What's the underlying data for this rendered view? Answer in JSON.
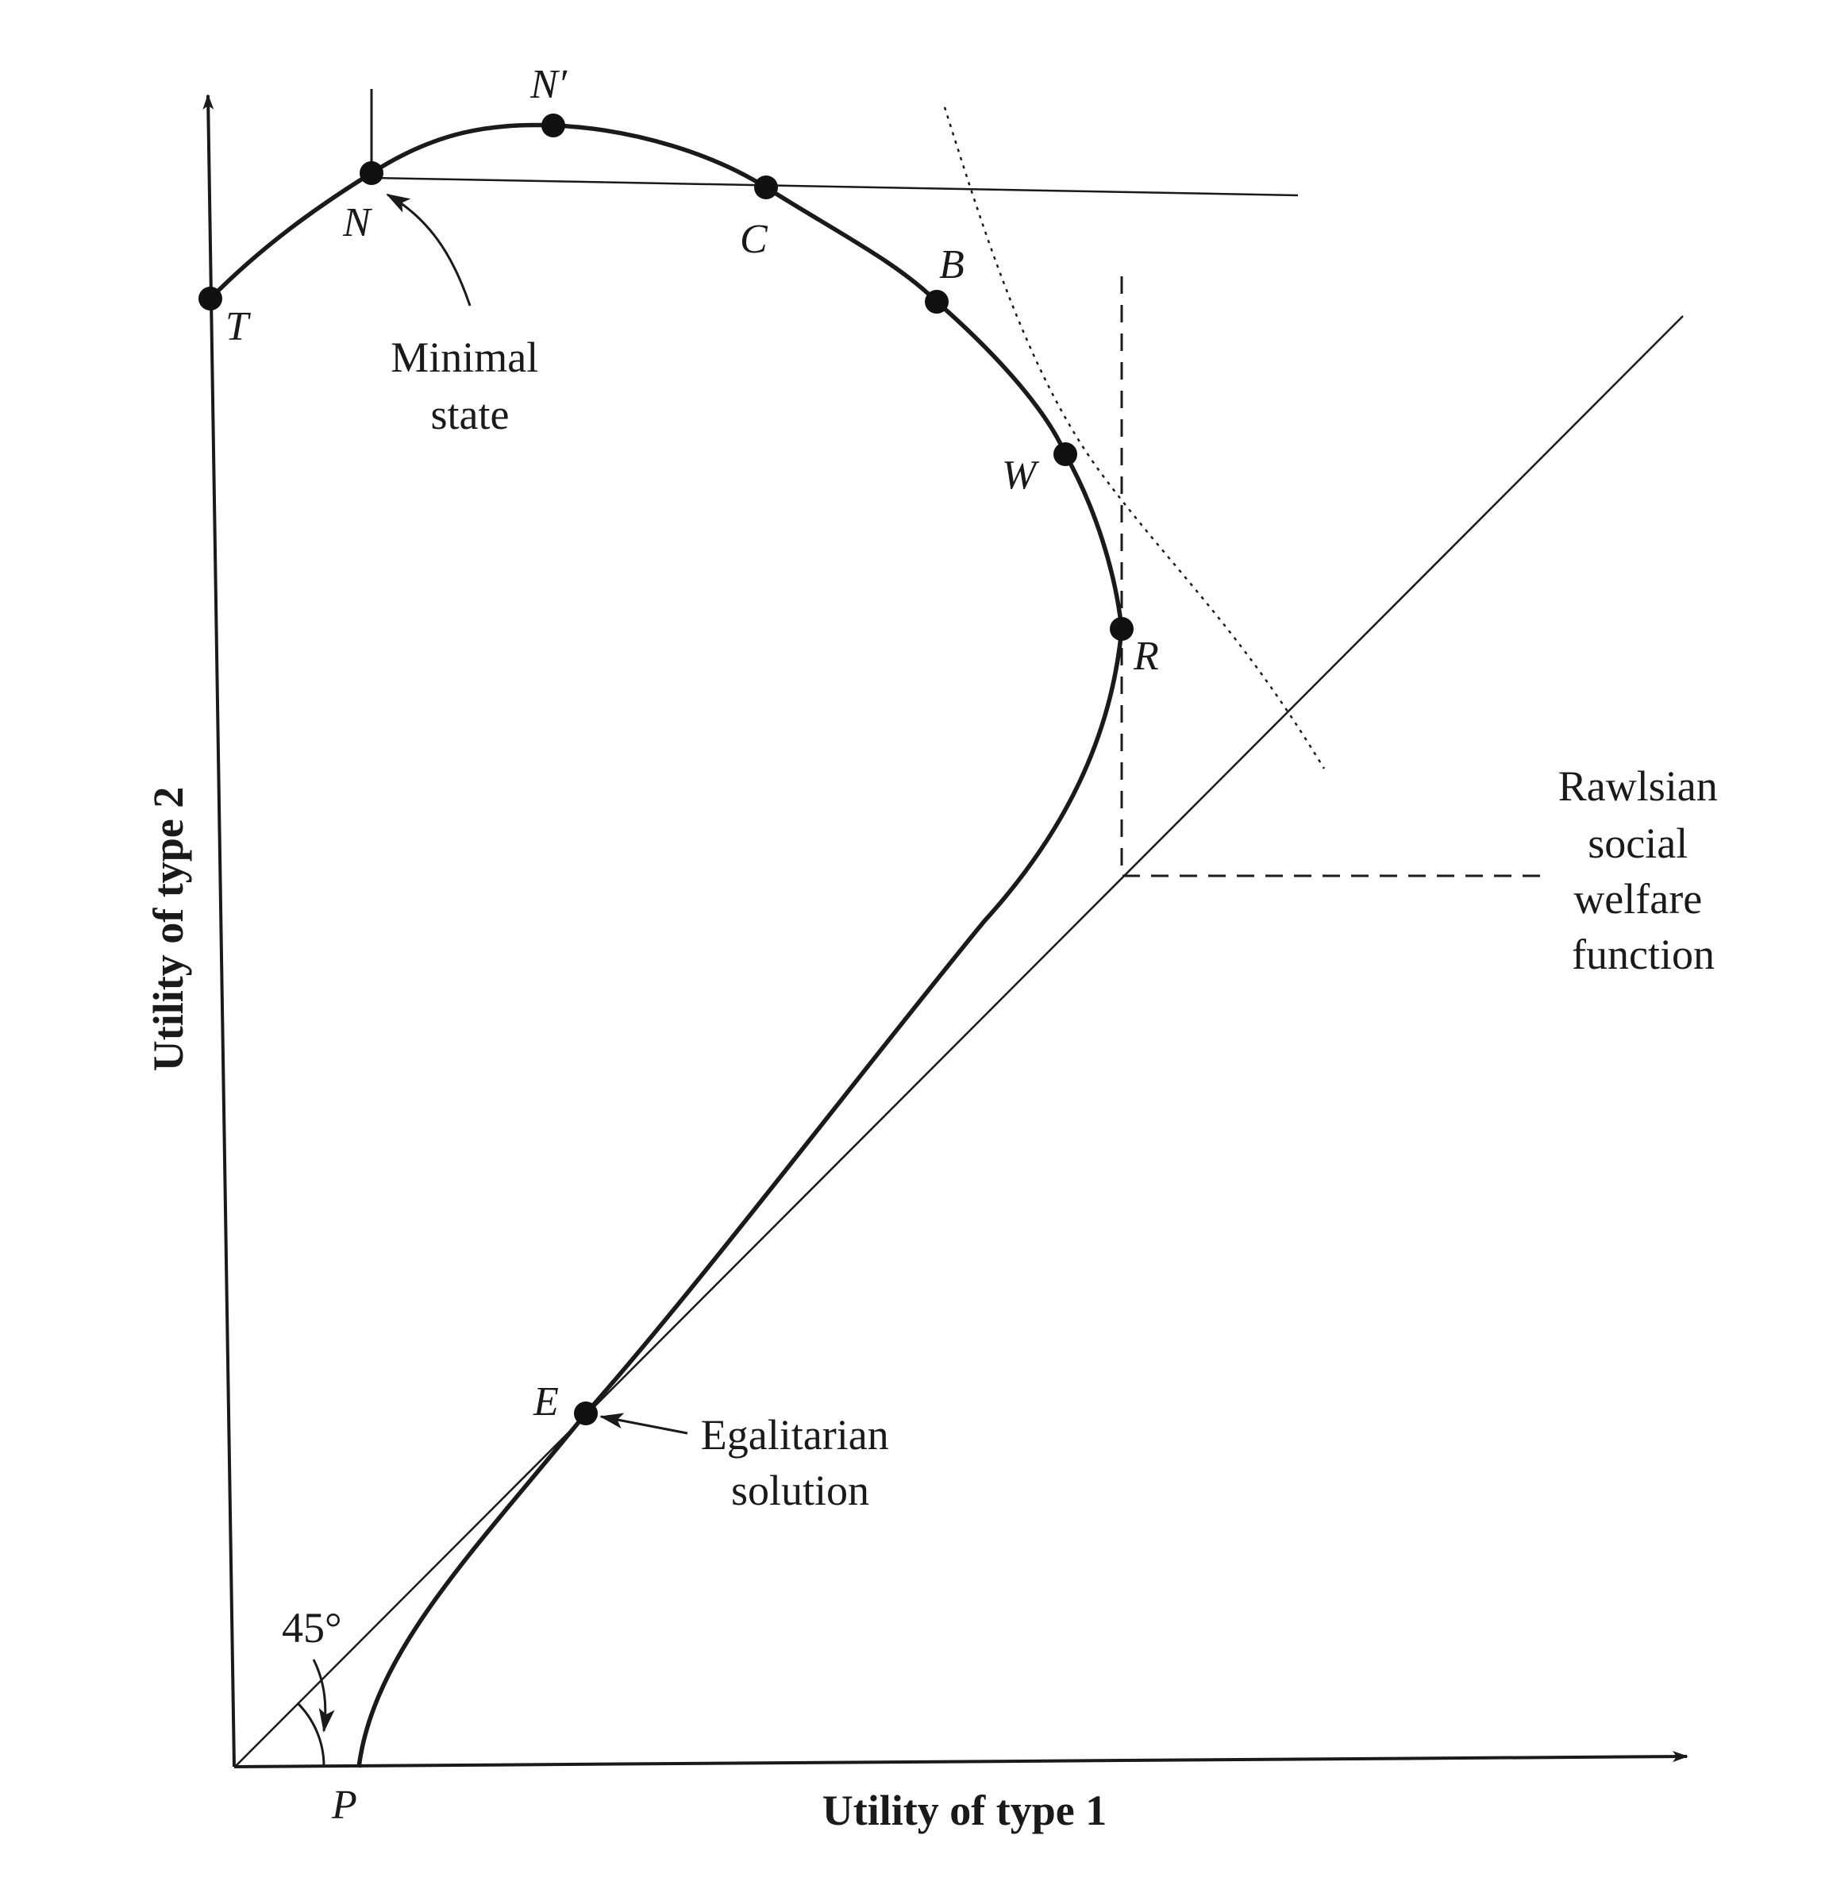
{
  "axes": {
    "x_label": "Utility of type 1",
    "y_label": "Utility of type 2"
  },
  "angle_label": "45°",
  "points": {
    "T": "T",
    "N": "N",
    "N_prime": "N′",
    "C": "C",
    "B": "B",
    "W": "W",
    "R": "R",
    "E": "E",
    "P": "P"
  },
  "annotations": {
    "minimal_state": [
      "Minimal",
      "state"
    ],
    "egalitarian": [
      "Egalitarian",
      "solution"
    ],
    "rawlsian": [
      "Rawlsian",
      "social",
      "welfare",
      "function"
    ]
  }
}
